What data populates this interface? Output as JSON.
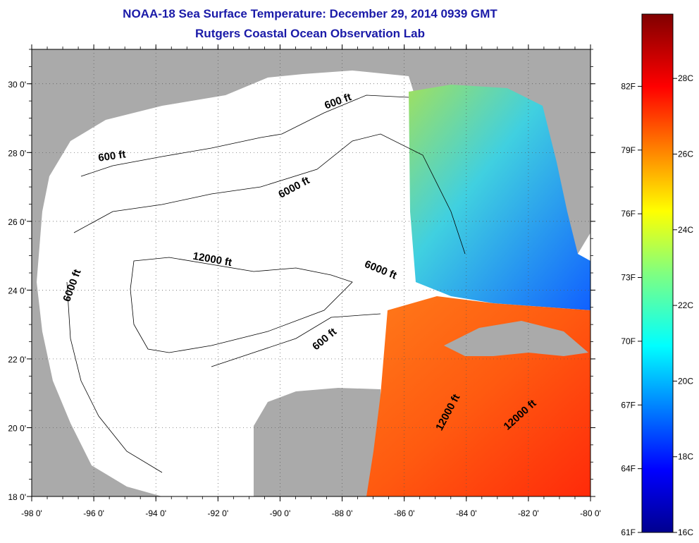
{
  "header": {
    "title": "NOAA-18 Sea Surface Temperature:  December 29, 2014 0939 GMT",
    "subtitle": "Rutgers Coastal Ocean Observation Lab"
  },
  "map": {
    "lon_range": [
      -98,
      -80
    ],
    "lat_range": [
      18,
      31
    ],
    "lon_ticks": [
      "-98 0'",
      "-96 0'",
      "-94 0'",
      "-92 0'",
      "-90 0'",
      "-88 0'",
      "-86 0'",
      "-84 0'",
      "-82 0'",
      "-80 0'"
    ],
    "lat_ticks": [
      "30 0'",
      "28 0'",
      "26 0'",
      "24 0'",
      "22 0'",
      "20 0'",
      "18 0'"
    ],
    "contour_labels": [
      {
        "text": "600 ft",
        "lon": -88.1,
        "lat": 29.4,
        "angle": -20
      },
      {
        "text": "600 ft",
        "lon": -95.4,
        "lat": 27.8,
        "angle": -8
      },
      {
        "text": "6000 ft",
        "lon": -89.5,
        "lat": 26.9,
        "angle": -28
      },
      {
        "text": "12000 ft",
        "lon": -92.2,
        "lat": 24.8,
        "angle": 10
      },
      {
        "text": "6000 ft",
        "lon": -86.8,
        "lat": 24.5,
        "angle": 22
      },
      {
        "text": "6000 ft",
        "lon": -96.6,
        "lat": 24.1,
        "angle": -70
      },
      {
        "text": "600 ft",
        "lon": -88.5,
        "lat": 22.5,
        "angle": -40
      },
      {
        "text": "12000 ft",
        "lon": -84.5,
        "lat": 20.4,
        "angle": -62
      },
      {
        "text": "12000 ft",
        "lon": -82.2,
        "lat": 20.3,
        "angle": -42
      }
    ],
    "colors": {
      "land": "#aaaaaa",
      "no_data": "#ffffff",
      "title": "#1a1aa8"
    }
  },
  "colorbar": {
    "fahrenheit_labels": [
      "82F",
      "79F",
      "76F",
      "73F",
      "70F",
      "67F",
      "64F",
      "61F"
    ],
    "celsius_labels": [
      "28C",
      "26C",
      "24C",
      "22C",
      "20C",
      "18C",
      "16C"
    ]
  }
}
